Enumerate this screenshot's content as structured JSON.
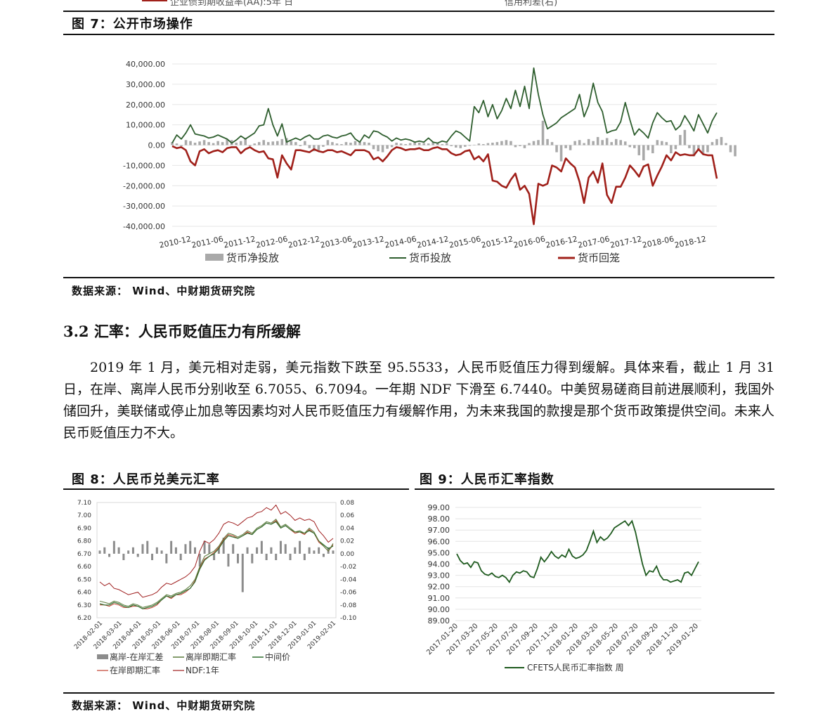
{
  "top_partial": {
    "legend_left": "企业债到期收益率(AA):5年 日",
    "legend_right": "信用利差(右)"
  },
  "fig7": {
    "caption": "图 7：公开市场操作",
    "source": "数据来源： Wind、中财期货研究院",
    "colors": {
      "net": "#a9a9a9",
      "invest": "#2e5e2e",
      "recall": "#a0201a"
    },
    "chart_data": {
      "type": "bar+line",
      "title": "",
      "ylim": [
        -40000,
        40000
      ],
      "yticks": [
        "40,000.00",
        "30,000.00",
        "20,000.00",
        "10,000.00",
        "0.00",
        "-10,000.00",
        "-20,000.00",
        "-30,000.00",
        "-40,000.00"
      ],
      "xticks": [
        "2010-12",
        "2011-06",
        "2011-12",
        "2012-06",
        "2012-12",
        "2013-06",
        "2013-12",
        "2014-06",
        "2014-12",
        "2015-06",
        "2015-12",
        "2016-06",
        "2016-12",
        "2017-06",
        "2017-12",
        "2018-06",
        "2018-12"
      ],
      "series": [
        {
          "name": "货币净投放",
          "type": "bar",
          "values": [
            1500,
            800,
            -500,
            2500,
            2000,
            1200,
            1800,
            2500,
            1500,
            1000,
            2000,
            1500,
            3000,
            2500,
            1200,
            2000,
            3500,
            -500,
            800,
            1500,
            2500,
            1500,
            1800,
            2000,
            3000,
            3500,
            2000,
            1500,
            -500,
            2000,
            -1500,
            -3000,
            -2500,
            -800,
            2500,
            1500,
            800,
            500,
            1500,
            1200,
            2000,
            1500,
            1500,
            1200,
            -2000,
            -3000,
            -3500,
            -1800,
            -1000,
            1200,
            800,
            500,
            1000,
            1500,
            1200,
            1000,
            800,
            1500,
            1200,
            500,
            1000,
            -500,
            -1200,
            -1500,
            -800,
            -300,
            200,
            800,
            500,
            1000,
            1200,
            1500,
            2000,
            2500,
            2000,
            -1000,
            -500,
            -1500,
            1000,
            2000,
            2500,
            12000,
            3000,
            1500,
            -3500,
            -8000,
            -1500,
            -2500,
            2000,
            2500,
            1000,
            3000,
            2000,
            4000,
            2500,
            3500,
            1500,
            3000,
            2500,
            1800,
            -1000,
            -1500,
            -5000,
            -7500,
            -2500,
            -4000,
            2500,
            2000,
            1500,
            -4000,
            -2000,
            5000,
            7500,
            -1500,
            -5500,
            -2000,
            -4500,
            -3500,
            1500,
            3000,
            4000,
            1000,
            -3500,
            -5500,
            1500,
            2000,
            6000,
            -1500
          ]
        },
        {
          "name": "货币投放",
          "type": "line",
          "values": [
            1000,
            5000,
            3000,
            6000,
            10000,
            5500,
            5000,
            4500,
            3500,
            4000,
            5000,
            4000,
            3000,
            1000,
            2500,
            4500,
            3000,
            4500,
            6000,
            9500,
            10000,
            18000,
            10000,
            4500,
            10500,
            1500,
            2500,
            3500,
            2500,
            4000,
            5000,
            3000,
            3000,
            4500,
            5000,
            4000,
            3500,
            4500,
            5000,
            6000,
            3000,
            1500,
            5000,
            3500,
            7000,
            6500,
            5000,
            4000,
            2000,
            3500,
            2500,
            3000,
            2500,
            1500,
            2000,
            1500,
            3500,
            1500,
            1000,
            2000,
            1500,
            4500,
            7000,
            6000,
            4000,
            2000,
            19000,
            16000,
            22000,
            14000,
            20000,
            13000,
            17000,
            23000,
            18000,
            27000,
            19000,
            29000,
            18000,
            38000,
            25000,
            15000,
            8000,
            9500,
            11000,
            13500,
            15000,
            16500,
            18000,
            25000,
            14000,
            19500,
            30500,
            21000,
            16500,
            6000,
            7000,
            7500,
            11500,
            21000,
            12500,
            5000,
            8000,
            6000,
            3500,
            11000,
            16000,
            13500,
            11500,
            12000,
            7500,
            9500,
            14500,
            11000,
            7000,
            15000,
            10500,
            6000,
            12000,
            16000
          ]
        },
        {
          "name": "货币回笼",
          "type": "line",
          "values": [
            -500,
            -1500,
            -1000,
            -2500,
            -8000,
            -10000,
            -3000,
            -2000,
            -4000,
            -3000,
            -2500,
            -3500,
            -1500,
            -1000,
            -1000,
            -4000,
            -2000,
            -1000,
            -2500,
            -3500,
            -3000,
            -6500,
            -7000,
            -16000,
            -5000,
            -9000,
            -12000,
            -2500,
            -2500,
            -3000,
            -3500,
            -2000,
            -3000,
            -3500,
            -2500,
            -2500,
            -3500,
            -3000,
            -4000,
            -5000,
            -2500,
            -2500,
            -2500,
            -3500,
            -7000,
            -6000,
            -8000,
            -5500,
            -2500,
            -1000,
            -1500,
            -2500,
            -2000,
            -2000,
            -1500,
            -2500,
            -2500,
            -1500,
            -1000,
            -2000,
            -2000,
            -4000,
            -5000,
            -4500,
            -3000,
            -2500,
            -7000,
            -5500,
            -8000,
            -4500,
            -17500,
            -18000,
            -20000,
            -21000,
            -17000,
            -14000,
            -22000,
            -20000,
            -24000,
            -39000,
            -19000,
            -20000,
            -19000,
            -10000,
            -11000,
            -13000,
            -6500,
            -9000,
            -11000,
            -18000,
            -28500,
            -16000,
            -13000,
            -18500,
            -9000,
            -24500,
            -28500,
            -20500,
            -20500,
            -16000,
            -10000,
            -12500,
            -15500,
            -10500,
            -9500,
            -20000,
            -15000,
            -10500,
            -5000,
            -7500,
            -3500,
            -5000,
            -4500,
            -5000,
            -5000,
            -2000,
            -4500,
            -5000,
            -5000,
            -16500
          ]
        }
      ]
    }
  },
  "section": {
    "title": "3.2 汇率：人民币贬值压力有所缓解",
    "paragraph": "2019 年 1 月，美元相对走弱，美元指数下跌至 95.5533，人民币贬值压力得到缓解。具体来看，截止 1 月 31 日，在岸、离岸人民币分别收至 6.7055、6.7094。一年期 NDF 下滑至 6.7440。中美贸易磋商目前进展顺利，我国外储回升，美联储或停止加息等因素均对人民币贬值压力有缓解作用，为未来我国的款搜是那个货币政策提供空间。未来人民币贬值压力不大。"
  },
  "fig8": {
    "caption": "图 8：人民币兑美元汇率",
    "colors": {
      "spread": "#8c8c8c",
      "offshore": "#5a7a3a",
      "mid": "#2e6e2e",
      "onshore": "#c04030",
      "ndf": "#a02020"
    },
    "chart_data": {
      "type": "bar+line",
      "ylim_left": [
        6.2,
        7.1
      ],
      "ylim_right": [
        -0.1,
        0.08
      ],
      "yticks_left": [
        "7.10",
        "7.00",
        "6.90",
        "6.80",
        "6.70",
        "6.60",
        "6.50",
        "6.40",
        "6.30",
        "6.20"
      ],
      "yticks_right": [
        "0.08",
        "0.06",
        "0.04",
        "0.02",
        "0.00",
        "-0.02",
        "-0.04",
        "-0.06",
        "-0.08",
        "-0.10"
      ],
      "xticks": [
        "2018-02-01",
        "2018-03-01",
        "2018-04-01",
        "2018-05-01",
        "2018-06-01",
        "2018-07-01",
        "2018-08-01",
        "2018-09-01",
        "2018-10-01",
        "2018-11-01",
        "2018-12-01",
        "2019-01-01",
        "2019-02-01"
      ],
      "legend": [
        "离岸-在岸汇差",
        "离岸即期汇率",
        "中间价",
        "在岸即期汇率",
        "NDF:1年"
      ],
      "series": [
        {
          "name": "离岸即期汇率",
          "values": [
            6.33,
            6.32,
            6.31,
            6.33,
            6.32,
            6.3,
            6.29,
            6.31,
            6.3,
            6.28,
            6.29,
            6.3,
            6.32,
            6.35,
            6.38,
            6.37,
            6.39,
            6.4,
            6.42,
            6.45,
            6.5,
            6.6,
            6.68,
            6.7,
            6.72,
            6.76,
            6.82,
            6.86,
            6.85,
            6.83,
            6.85,
            6.88,
            6.86,
            6.9,
            6.92,
            6.95,
            6.94,
            6.97,
            6.91,
            6.93,
            6.9,
            6.87,
            6.88,
            6.86,
            6.9,
            6.87,
            6.8,
            6.76,
            6.72,
            6.78
          ]
        },
        {
          "name": "中间价",
          "values": [
            6.31,
            6.3,
            6.3,
            6.32,
            6.31,
            6.29,
            6.28,
            6.3,
            6.29,
            6.27,
            6.28,
            6.29,
            6.31,
            6.34,
            6.37,
            6.36,
            6.38,
            6.39,
            6.41,
            6.43,
            6.48,
            6.58,
            6.65,
            6.68,
            6.7,
            6.74,
            6.8,
            6.84,
            6.83,
            6.82,
            6.84,
            6.86,
            6.85,
            6.89,
            6.91,
            6.94,
            6.93,
            6.95,
            6.9,
            6.92,
            6.89,
            6.87,
            6.87,
            6.86,
            6.88,
            6.86,
            6.8,
            6.77,
            6.74,
            6.76
          ]
        },
        {
          "name": "在岸即期汇率",
          "values": [
            6.3,
            6.3,
            6.29,
            6.31,
            6.3,
            6.28,
            6.28,
            6.29,
            6.29,
            6.27,
            6.27,
            6.28,
            6.3,
            6.34,
            6.37,
            6.35,
            6.38,
            6.38,
            6.4,
            6.43,
            6.49,
            6.59,
            6.66,
            6.68,
            6.71,
            6.75,
            6.81,
            6.85,
            6.84,
            6.82,
            6.84,
            6.87,
            6.85,
            6.89,
            6.91,
            6.94,
            6.93,
            6.96,
            6.9,
            6.92,
            6.89,
            6.86,
            6.87,
            6.85,
            6.89,
            6.86,
            6.79,
            6.76,
            6.72,
            6.77
          ]
        },
        {
          "name": "NDF:1年",
          "values": [
            6.48,
            6.45,
            6.47,
            6.43,
            6.42,
            6.4,
            6.38,
            6.39,
            6.4,
            6.36,
            6.37,
            6.38,
            6.4,
            6.44,
            6.47,
            6.46,
            6.48,
            6.5,
            6.52,
            6.55,
            6.6,
            6.72,
            6.8,
            6.78,
            6.81,
            6.86,
            6.93,
            6.95,
            6.94,
            6.92,
            6.95,
            6.98,
            6.99,
            7.02,
            7.03,
            7.06,
            7.04,
            7.08,
            7.01,
            7.03,
            7.0,
            6.96,
            6.98,
            6.96,
            6.97,
            6.95,
            6.88,
            6.84,
            6.79,
            6.82
          ]
        },
        {
          "name": "离岸-在岸汇差",
          "values": [
            0.005,
            0.01,
            -0.005,
            0.02,
            0.01,
            -0.01,
            0.005,
            0.01,
            -0.005,
            0.015,
            0.02,
            -0.01,
            0.01,
            0.005,
            -0.015,
            0.02,
            0.01,
            -0.01,
            0.015,
            0.02,
            0.01,
            -0.02,
            0.02,
            0.015,
            -0.01,
            0.01,
            0.025,
            -0.02,
            0.015,
            -0.015,
            -0.06,
            0.01,
            -0.015,
            0.01,
            0.02,
            -0.01,
            0.01,
            -0.01,
            0.02,
            0.015,
            -0.01,
            0.01,
            0.02,
            -0.01,
            0.01,
            0.005,
            0.01,
            -0.005,
            0.01,
            0.005
          ]
        }
      ]
    }
  },
  "fig9": {
    "caption": "图 9：人民币汇率指数",
    "color": "#1e5a1e",
    "chart_data": {
      "type": "line",
      "ylim": [
        89,
        99
      ],
      "yticks": [
        "99.00",
        "98.00",
        "97.00",
        "96.00",
        "95.00",
        "94.00",
        "93.00",
        "92.00",
        "91.00",
        "90.00",
        "89.00"
      ],
      "xticks": [
        "2017-01-20",
        "2017-03-20",
        "2017-05-20",
        "2017-07-20",
        "2017-09-20",
        "2017-11-20",
        "2018-01-20",
        "2018-03-20",
        "2018-05-20",
        "2018-07-20",
        "2018-09-20",
        "2018-11-20",
        "2019-01-20"
      ],
      "series": [
        {
          "name": "CFETS人民币汇率指数 周",
          "values": [
            94.9,
            94.3,
            94.0,
            94.1,
            93.7,
            94.2,
            94.1,
            93.4,
            93.1,
            93.0,
            93.2,
            92.9,
            92.8,
            93.0,
            92.8,
            92.4,
            93.0,
            93.3,
            93.2,
            93.4,
            93.3,
            92.9,
            92.8,
            93.6,
            94.6,
            94.2,
            94.6,
            95.1,
            94.7,
            94.5,
            94.8,
            94.6,
            95.3,
            94.7,
            94.5,
            94.6,
            94.8,
            95.2,
            96.0,
            96.9,
            95.9,
            96.4,
            96.1,
            96.3,
            96.7,
            97.2,
            97.4,
            97.6,
            97.8,
            97.4,
            97.8,
            96.8,
            95.4,
            94.0,
            93.0,
            93.4,
            93.3,
            93.8,
            93.0,
            92.6,
            92.6,
            92.4,
            92.5,
            92.6,
            92.4,
            93.2,
            93.3,
            93.0,
            93.6,
            94.2
          ]
        }
      ]
    },
    "legend": "CFETS人民币汇率指数 周"
  },
  "footer_source": "数据来源： Wind、中财期货研究院"
}
